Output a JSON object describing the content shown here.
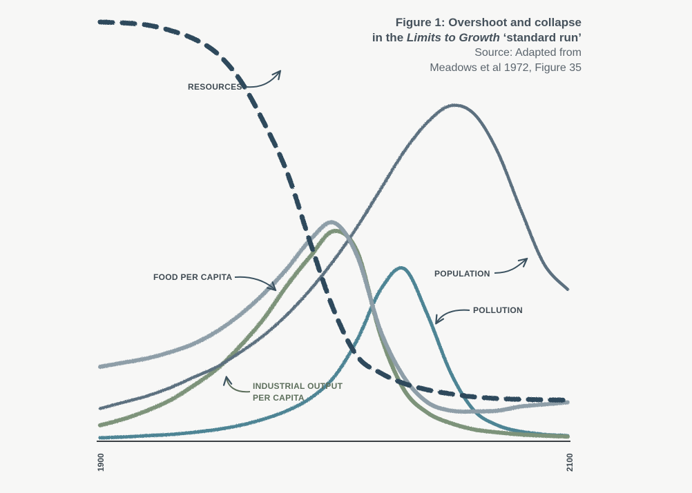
{
  "title": {
    "line1": "Figure 1: Overshoot and collapse",
    "line2_prefix": "in the ",
    "line2_italic": "Limits to Growth",
    "line2_suffix": " ‘standard run’",
    "source1": "Source: Adapted from",
    "source2": "Meadows  et al 1972, Figure 35"
  },
  "colors": {
    "resources": "#2f4a5c",
    "population": "#5c6f7f",
    "food": "#8e9ea8",
    "industrial": "#7d937a",
    "pollution": "#4e8494",
    "baseline": "#3a3f44",
    "arrow": "#3b5260"
  },
  "chart_data": {
    "type": "line",
    "title": "Figure 1: Overshoot and collapse in the Limits to Growth ‘standard run’",
    "xlabel": "",
    "ylabel": "",
    "xlim": [
      1900,
      2100
    ],
    "ylim": [
      0,
      1
    ],
    "x_tick_labels": [
      "1900",
      "2100"
    ],
    "grid": false,
    "legend": "inline labels",
    "series": [
      {
        "name": "RESOURCES",
        "style": "dashed",
        "x": [
          1900,
          1910,
          1920,
          1930,
          1940,
          1950,
          1960,
          1970,
          1980,
          1990,
          2000,
          2010,
          2020,
          2030,
          2040,
          2050,
          2060,
          2070,
          2080,
          2090,
          2100
        ],
        "y": [
          1.0,
          0.998,
          0.993,
          0.98,
          0.96,
          0.925,
          0.86,
          0.76,
          0.64,
          0.47,
          0.31,
          0.2,
          0.16,
          0.135,
          0.12,
          0.11,
          0.103,
          0.099,
          0.097,
          0.096,
          0.095
        ]
      },
      {
        "name": "POPULATION",
        "x": [
          1900,
          1910,
          1920,
          1930,
          1940,
          1950,
          1960,
          1970,
          1980,
          1990,
          2000,
          2010,
          2020,
          2030,
          2040,
          2050,
          2060,
          2070,
          2080,
          2090,
          2100
        ],
        "y": [
          0.075,
          0.09,
          0.105,
          0.125,
          0.15,
          0.175,
          0.21,
          0.25,
          0.3,
          0.36,
          0.43,
          0.51,
          0.6,
          0.69,
          0.76,
          0.8,
          0.78,
          0.69,
          0.55,
          0.42,
          0.36
        ]
      },
      {
        "name": "FOOD PER CAPITA",
        "x": [
          1900,
          1910,
          1920,
          1930,
          1940,
          1950,
          1960,
          1970,
          1980,
          1990,
          2000,
          2010,
          2020,
          2030,
          2040,
          2050,
          2060,
          2070,
          2080,
          2090,
          2100
        ],
        "y": [
          0.175,
          0.185,
          0.195,
          0.21,
          0.23,
          0.26,
          0.3,
          0.35,
          0.41,
          0.48,
          0.52,
          0.44,
          0.26,
          0.15,
          0.09,
          0.07,
          0.068,
          0.07,
          0.08,
          0.085,
          0.09
        ]
      },
      {
        "name": "INDUSTRIAL OUTPUT PER CAPITA",
        "x": [
          1900,
          1910,
          1920,
          1930,
          1940,
          1950,
          1960,
          1970,
          1980,
          1990,
          2000,
          2010,
          2020,
          2030,
          2040,
          2050,
          2060,
          2070,
          2080,
          2090,
          2100
        ],
        "y": [
          0.035,
          0.05,
          0.07,
          0.095,
          0.13,
          0.17,
          0.225,
          0.29,
          0.37,
          0.44,
          0.5,
          0.45,
          0.25,
          0.12,
          0.065,
          0.04,
          0.025,
          0.018,
          0.013,
          0.01,
          0.008
        ]
      },
      {
        "name": "POLLUTION",
        "x": [
          1900,
          1910,
          1920,
          1930,
          1940,
          1950,
          1960,
          1970,
          1980,
          1990,
          2000,
          2010,
          2020,
          2030,
          2040,
          2050,
          2060,
          2070,
          2080,
          2090,
          2100
        ],
        "y": [
          0.005,
          0.007,
          0.01,
          0.013,
          0.018,
          0.025,
          0.035,
          0.05,
          0.07,
          0.1,
          0.15,
          0.24,
          0.36,
          0.41,
          0.3,
          0.16,
          0.07,
          0.035,
          0.02,
          0.013,
          0.01
        ]
      }
    ],
    "annotations": [
      {
        "series": "RESOURCES",
        "text": "RESOURCES"
      },
      {
        "series": "POPULATION",
        "text": "POPULATION"
      },
      {
        "series": "FOOD PER CAPITA",
        "text": "FOOD PER CAPITA"
      },
      {
        "series": "INDUSTRIAL OUTPUT PER CAPITA",
        "text_line1": "INDUSTRIAL OUTPUT",
        "text_line2": "PER CAPITA"
      },
      {
        "series": "POLLUTION",
        "text": "POLLUTION"
      }
    ]
  }
}
